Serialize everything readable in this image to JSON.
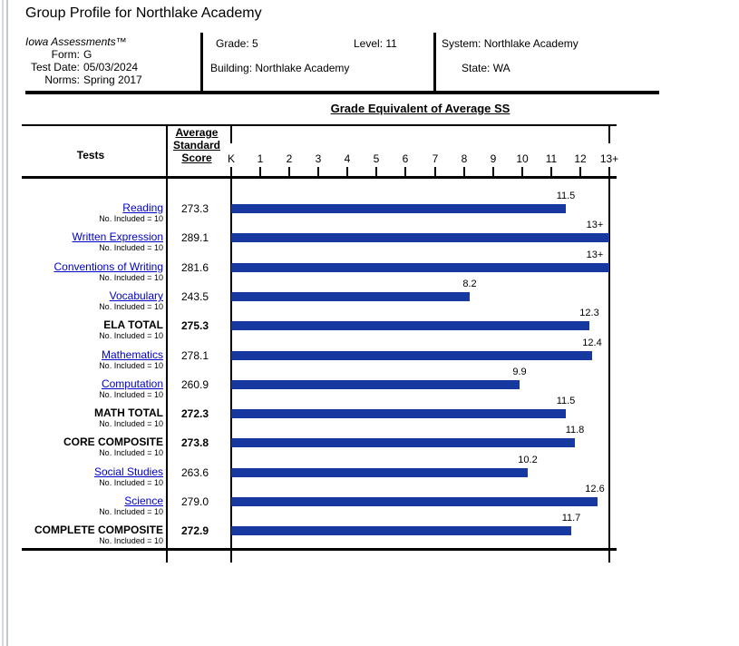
{
  "page": {
    "title": "Group Profile for Northlake Academy"
  },
  "header": {
    "product": "Iowa Assessments™",
    "fields_left": [
      {
        "label": "Form:",
        "value": "G"
      },
      {
        "label": "Test Date:",
        "value": "05/03/2024"
      },
      {
        "label": "Norms:",
        "value": "Spring 2017"
      }
    ],
    "grade_label": "Grade:",
    "grade": "5",
    "level_label": "Level:",
    "level": "11",
    "building_label": "Building:",
    "building": "Northlake Academy",
    "system_label": "System:",
    "system": "Northlake Academy",
    "state_label": "State:",
    "state": "WA"
  },
  "table": {
    "tests_header": "Tests",
    "score_header_lines": [
      "Average",
      "Standard",
      "Score"
    ]
  },
  "chart_data": {
    "type": "bar",
    "title": "Grade Equivalent of Average SS",
    "xlabel": "Grade Equivalent",
    "axis_ticks": [
      "K",
      "1",
      "2",
      "3",
      "4",
      "5",
      "6",
      "7",
      "8",
      "9",
      "10",
      "11",
      "12",
      "13+"
    ],
    "xlim": [
      0,
      13
    ],
    "grid": false,
    "rows": [
      {
        "test": "Reading",
        "n": "No. Included = 10",
        "avg_ss": "273.3",
        "ge": 11.5,
        "ge_label": "11.5",
        "style": "link"
      },
      {
        "test": "Written Expression",
        "n": "No. Included = 10",
        "avg_ss": "289.1",
        "ge": 13,
        "ge_label": "13+",
        "style": "link"
      },
      {
        "test": "Conventions of Writing",
        "n": "No. Included = 10",
        "avg_ss": "281.6",
        "ge": 13,
        "ge_label": "13+",
        "style": "link"
      },
      {
        "test": "Vocabulary",
        "n": "No. Included = 10",
        "avg_ss": "243.5",
        "ge": 8.2,
        "ge_label": "8.2",
        "style": "link"
      },
      {
        "test": "ELA TOTAL",
        "n": "No. Included = 10",
        "avg_ss": "275.3",
        "ge": 12.3,
        "ge_label": "12.3",
        "style": "total"
      },
      {
        "test": "Mathematics",
        "n": "No. Included = 10",
        "avg_ss": "278.1",
        "ge": 12.4,
        "ge_label": "12.4",
        "style": "link"
      },
      {
        "test": "Computation",
        "n": "No. Included = 10",
        "avg_ss": "260.9",
        "ge": 9.9,
        "ge_label": "9.9",
        "style": "link"
      },
      {
        "test": "MATH TOTAL",
        "n": "No. Included = 10",
        "avg_ss": "272.3",
        "ge": 11.5,
        "ge_label": "11.5",
        "style": "total"
      },
      {
        "test": "CORE COMPOSITE",
        "n": "No. Included = 10",
        "avg_ss": "273.8",
        "ge": 11.8,
        "ge_label": "11.8",
        "style": "total"
      },
      {
        "test": "Social Studies",
        "n": "No. Included = 10",
        "avg_ss": "263.6",
        "ge": 10.2,
        "ge_label": "10.2",
        "style": "link"
      },
      {
        "test": "Science",
        "n": "No. Included = 10",
        "avg_ss": "279.0",
        "ge": 12.6,
        "ge_label": "12.6",
        "style": "link"
      },
      {
        "test": "COMPLETE COMPOSITE",
        "n": "No. Included = 10",
        "avg_ss": "272.9",
        "ge": 11.7,
        "ge_label": "11.7",
        "style": "total"
      }
    ]
  },
  "colors": {
    "bar": "#17389f",
    "link": "#0000cc"
  }
}
